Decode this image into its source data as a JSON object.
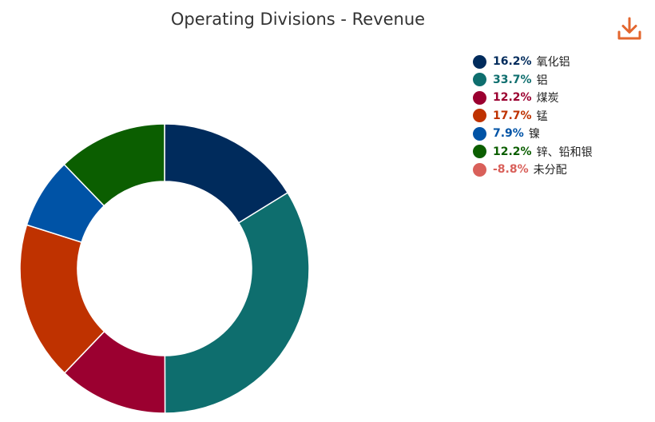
{
  "chart_data": {
    "type": "pie",
    "variant": "donut",
    "title": "Operating Divisions - Revenue",
    "legend_position": "top-right",
    "series": [
      {
        "name": "氧化铝",
        "value": 16.2,
        "label": "16.2%",
        "color": "#002b5c"
      },
      {
        "name": "铝",
        "value": 33.7,
        "label": "33.7%",
        "color": "#0e6e6e"
      },
      {
        "name": "煤炭",
        "value": 12.2,
        "label": "12.2%",
        "color": "#9b0030"
      },
      {
        "name": "锰",
        "value": 17.7,
        "label": "17.7%",
        "color": "#bf3200"
      },
      {
        "name": "镍",
        "value": 7.9,
        "label": "7.9%",
        "color": "#0053a6"
      },
      {
        "name": "锌、铅和银",
        "value": 12.2,
        "label": "12.2%",
        "color": "#0b5e00"
      },
      {
        "name": "未分配",
        "value": -8.8,
        "label": "-8.8%",
        "color": "#d9605a"
      }
    ]
  },
  "toolbar": {
    "download_icon": "download-icon",
    "accent_color": "#e3662e"
  }
}
